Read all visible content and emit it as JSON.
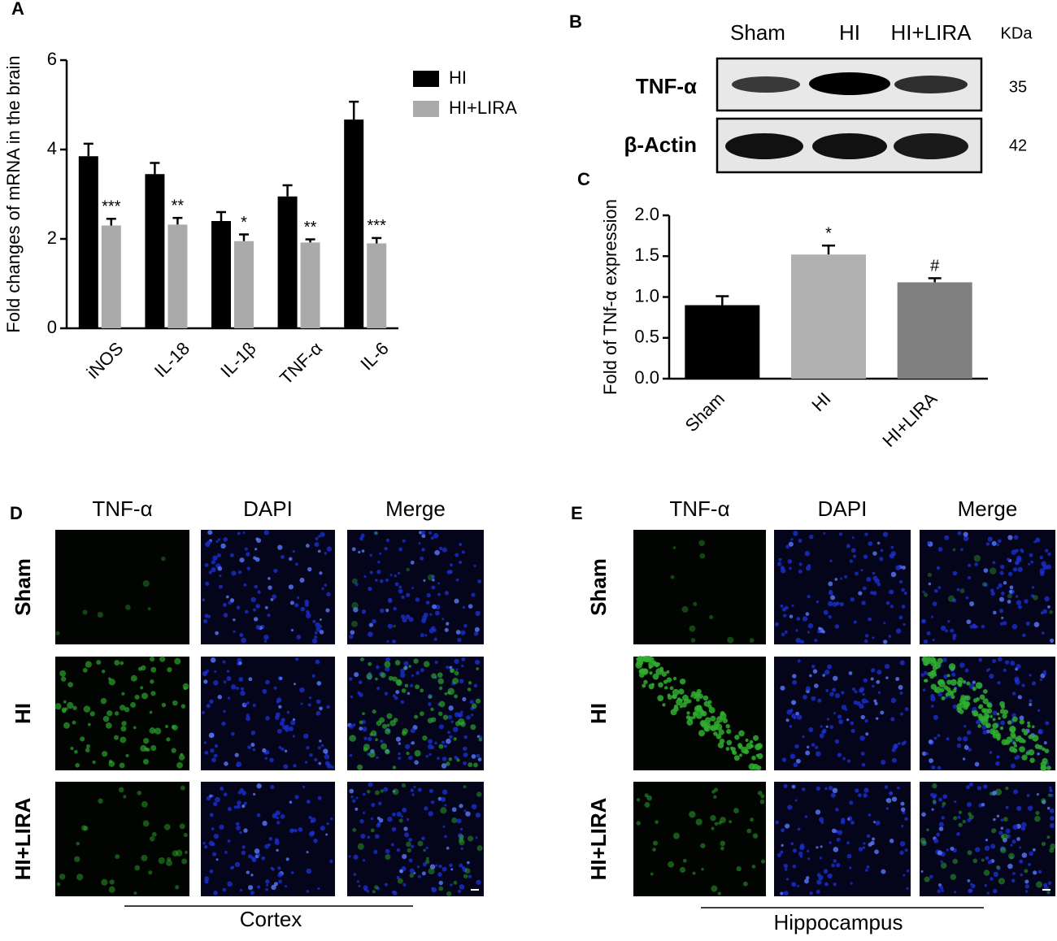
{
  "chart_data": [
    {
      "type": "bar",
      "panel_label": "A",
      "ylabel": "Fold changes of mRNA in the brain",
      "categories": [
        "iNOS",
        "IL-18",
        "IL-1β",
        "TNF-α",
        "IL-6"
      ],
      "series": [
        {
          "name": "HI",
          "color": "#000000",
          "values": [
            3.85,
            3.45,
            2.4,
            2.95,
            4.67
          ],
          "errors": [
            0.28,
            0.25,
            0.2,
            0.25,
            0.4
          ],
          "annotations": [
            null,
            null,
            null,
            null,
            null
          ]
        },
        {
          "name": "HI+LIRA",
          "color": "#aaaaaa",
          "values": [
            2.3,
            2.32,
            1.95,
            1.92,
            1.9
          ],
          "errors": [
            0.15,
            0.15,
            0.15,
            0.07,
            0.12
          ],
          "annotations": [
            "***",
            "**",
            "*",
            "**",
            "***"
          ]
        }
      ],
      "ylim": [
        0,
        6
      ],
      "yticks": [
        0,
        2,
        4,
        6
      ],
      "legend": "upper right"
    },
    {
      "type": "bar",
      "panel_label": "C",
      "ylabel": "Fold of TNf-α expression",
      "categories": [
        "Sham",
        "HI",
        "HI+LIRA"
      ],
      "values": [
        0.9,
        1.52,
        1.18
      ],
      "errors": [
        0.11,
        0.11,
        0.05
      ],
      "annotations": [
        null,
        "*",
        "#"
      ],
      "colors": [
        "#000000",
        "#b0b0b0",
        "#808080"
      ],
      "ylim": [
        0,
        2
      ],
      "yticks": [
        {
          "value": 0,
          "label": "0.0"
        },
        {
          "value": 0.5,
          "label": "0.5"
        },
        {
          "value": 1,
          "label": "1.0"
        },
        {
          "value": 1.5,
          "label": "1.5"
        },
        {
          "value": 2,
          "label": "2.0"
        }
      ]
    }
  ],
  "blot": {
    "panel_label": "B",
    "columns": [
      "Sham",
      "HI",
      "HI+LIRA"
    ],
    "unit": "KDa",
    "rows": [
      {
        "label": "TNF-α",
        "mass": 35
      },
      {
        "label": "β-Actin",
        "mass": 42
      }
    ]
  },
  "micrographs": [
    {
      "panel_label": "D",
      "columns": [
        "TNF-α",
        "DAPI",
        "Merge"
      ],
      "rows": [
        "Sham",
        "HI",
        "HI+LIRA"
      ],
      "region": "Cortex"
    },
    {
      "panel_label": "E",
      "columns": [
        "TNF-α",
        "DAPI",
        "Merge"
      ],
      "rows": [
        "Sham",
        "HI",
        "HI+LIRA"
      ],
      "region": "Hippocampus"
    }
  ]
}
